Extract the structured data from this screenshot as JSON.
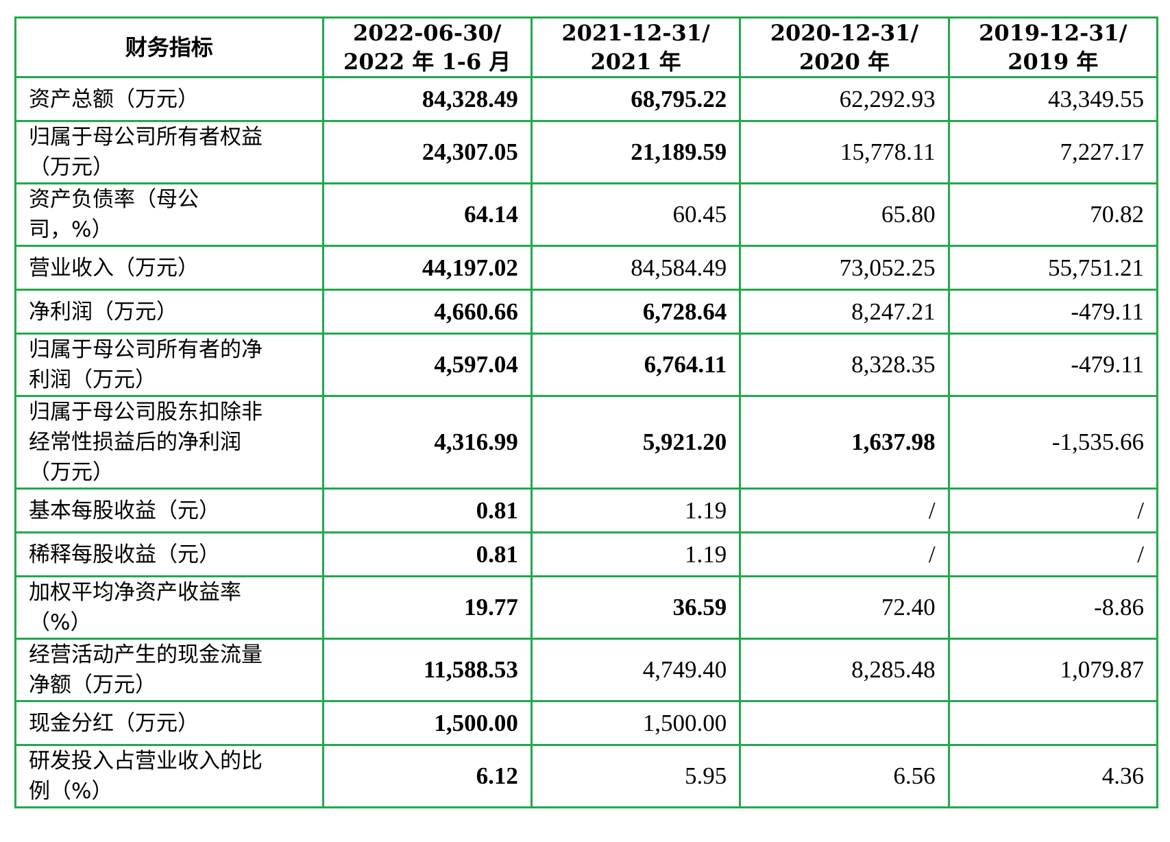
{
  "table": {
    "headers": [
      {
        "lines": [
          "财务指标"
        ]
      },
      {
        "lines": [
          "2022-06-30/",
          "2022 年 1-6 月"
        ]
      },
      {
        "lines": [
          "2021-12-31/",
          "2021 年"
        ]
      },
      {
        "lines": [
          "2020-12-31/",
          "2020 年"
        ]
      },
      {
        "lines": [
          "2019-12-31/",
          "2019 年"
        ]
      }
    ],
    "rows": [
      {
        "label": [
          "资产总额（万元）"
        ],
        "values": [
          "84,328.49",
          "68,795.22",
          "62,292.93",
          "43,349.55"
        ],
        "bold": [
          true,
          true,
          false,
          false
        ]
      },
      {
        "label": [
          "归属于母公司所有者权益",
          "（万元）"
        ],
        "values": [
          "24,307.05",
          "21,189.59",
          "15,778.11",
          "7,227.17"
        ],
        "bold": [
          true,
          true,
          false,
          false
        ]
      },
      {
        "label": [
          "资产负债率（母公",
          "司，%）"
        ],
        "values": [
          "64.14",
          "60.45",
          "65.80",
          "70.82"
        ],
        "bold": [
          true,
          false,
          false,
          false
        ]
      },
      {
        "label": [
          "营业收入（万元）"
        ],
        "values": [
          "44,197.02",
          "84,584.49",
          "73,052.25",
          "55,751.21"
        ],
        "bold": [
          true,
          false,
          false,
          false
        ]
      },
      {
        "label": [
          "净利润（万元）"
        ],
        "values": [
          "4,660.66",
          "6,728.64",
          "8,247.21",
          "-479.11"
        ],
        "bold": [
          true,
          true,
          false,
          false
        ]
      },
      {
        "label": [
          "归属于母公司所有者的净",
          "利润（万元）"
        ],
        "values": [
          "4,597.04",
          "6,764.11",
          "8,328.35",
          "-479.11"
        ],
        "bold": [
          true,
          true,
          false,
          false
        ]
      },
      {
        "label": [
          "归属于母公司股东扣除非",
          "经常性损益后的净利润",
          "（万元）"
        ],
        "values": [
          "4,316.99",
          "5,921.20",
          "1,637.98",
          "-1,535.66"
        ],
        "bold": [
          true,
          true,
          true,
          false
        ]
      },
      {
        "label": [
          "基本每股收益（元）"
        ],
        "values": [
          "0.81",
          "1.19",
          "/",
          "/"
        ],
        "bold": [
          true,
          false,
          false,
          false
        ]
      },
      {
        "label": [
          "稀释每股收益（元）"
        ],
        "values": [
          "0.81",
          "1.19",
          "/",
          "/"
        ],
        "bold": [
          true,
          false,
          false,
          false
        ]
      },
      {
        "label": [
          "加权平均净资产收益率",
          "（%）"
        ],
        "values": [
          "19.77",
          "36.59",
          "72.40",
          "-8.86"
        ],
        "bold": [
          true,
          true,
          false,
          false
        ]
      },
      {
        "label": [
          "经营活动产生的现金流量",
          "净额（万元）"
        ],
        "values": [
          "11,588.53",
          "4,749.40",
          "8,285.48",
          "1,079.87"
        ],
        "bold": [
          true,
          false,
          false,
          false
        ]
      },
      {
        "label": [
          "现金分红（万元）"
        ],
        "values": [
          "1,500.00",
          "1,500.00",
          "",
          ""
        ],
        "bold": [
          true,
          false,
          false,
          false
        ]
      },
      {
        "label": [
          "研发投入占营业收入的比",
          "例（%）"
        ],
        "values": [
          "6.12",
          "5.95",
          "6.56",
          "4.36"
        ],
        "bold": [
          true,
          false,
          false,
          false
        ]
      }
    ]
  },
  "colors": {
    "border": "#22a84a",
    "text": "#000000",
    "background": "#ffffff"
  }
}
